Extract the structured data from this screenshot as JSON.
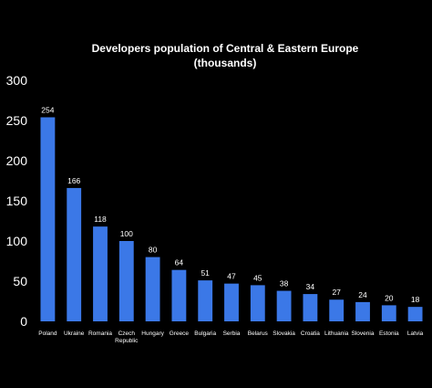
{
  "chart_data": {
    "type": "bar",
    "title_lines": [
      "Developers population of Central & Eastern Europe",
      "(thousands)"
    ],
    "categories": [
      [
        "Poland"
      ],
      [
        "Ukraine"
      ],
      [
        "Romania"
      ],
      [
        "Czech",
        "Republic"
      ],
      [
        "Hungary"
      ],
      [
        "Greece"
      ],
      [
        "Bulgaria"
      ],
      [
        "Serbia"
      ],
      [
        "Belarus"
      ],
      [
        "Slovakia"
      ],
      [
        "Croatia"
      ],
      [
        "Lithuania"
      ],
      [
        "Slovenia"
      ],
      [
        "Estonia"
      ],
      [
        "Latvia"
      ]
    ],
    "values": [
      254,
      166,
      118,
      100,
      80,
      64,
      51,
      47,
      45,
      38,
      34,
      27,
      24,
      20,
      18
    ],
    "ylim": [
      0,
      300
    ],
    "yticks": [
      0,
      50,
      100,
      150,
      200,
      250,
      300
    ],
    "xlabel": "",
    "ylabel": "",
    "grid": false,
    "legend": "none",
    "colors": {
      "background": "#000000",
      "bar": "#3b78e7",
      "text": "#ffffff"
    }
  }
}
